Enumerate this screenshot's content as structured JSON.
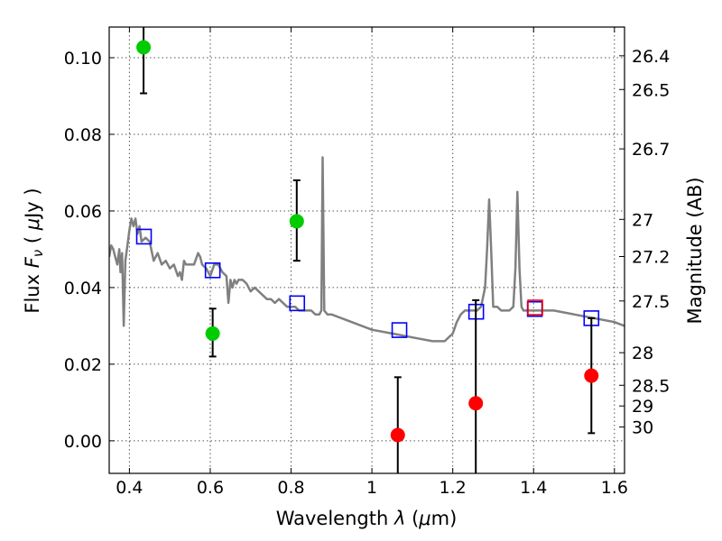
{
  "chart_data": {
    "type": "scatter",
    "title": "",
    "xlabel": "Wavelength  λ (μm)",
    "ylabel": "Flux  F_ν  ( μJy )",
    "ylabel_parts": {
      "pre": "Flux  ",
      "sym": "F",
      "sub": "ν",
      "mid": "  ( ",
      "mu": "μ",
      "post": "Jy )"
    },
    "xlabel_parts": {
      "pre": "Wavelength  ",
      "sym": "λ",
      "mid": " (",
      "mu": "μ",
      "post": "m)"
    },
    "y2label": "Magnitude (AB)",
    "xlim": [
      0.35,
      1.625
    ],
    "ylim": [
      -0.0085,
      0.108
    ],
    "grid": true,
    "x_ticks": [
      0.4,
      0.6,
      0.8,
      1.0,
      1.2,
      1.4,
      1.6
    ],
    "x_tick_labels": [
      "0.4",
      "0.6",
      "0.8",
      "1",
      "1.2",
      "1.4",
      "1.6"
    ],
    "y_ticks": [
      0.0,
      0.02,
      0.04,
      0.06,
      0.08,
      0.1
    ],
    "y_tick_labels": [
      "0.00",
      "0.02",
      "0.04",
      "0.06",
      "0.08",
      "0.10"
    ],
    "y2_ticks": [
      {
        "label": "26.4",
        "flux": 0.1005
      },
      {
        "label": "26.5",
        "flux": 0.0917
      },
      {
        "label": "26.7",
        "flux": 0.0762
      },
      {
        "label": "27",
        "flux": 0.0578
      },
      {
        "label": "27.2",
        "flux": 0.0481
      },
      {
        "label": "27.5",
        "flux": 0.0365
      },
      {
        "label": "28",
        "flux": 0.023
      },
      {
        "label": "28.5",
        "flux": 0.0145
      },
      {
        "label": "29",
        "flux": 0.0091
      },
      {
        "label": "30",
        "flux": 0.0036
      }
    ],
    "series": [
      {
        "color": "#808080",
        "kind": "line",
        "x": [
          0.35,
          0.355,
          0.36,
          0.365,
          0.37,
          0.375,
          0.378,
          0.382,
          0.386,
          0.39,
          0.395,
          0.4,
          0.405,
          0.41,
          0.415,
          0.42,
          0.425,
          0.43,
          0.44,
          0.45,
          0.46,
          0.47,
          0.48,
          0.49,
          0.5,
          0.51,
          0.52,
          0.525,
          0.53,
          0.535,
          0.54,
          0.55,
          0.56,
          0.57,
          0.575,
          0.58,
          0.59,
          0.6,
          0.61,
          0.62,
          0.63,
          0.64,
          0.645,
          0.65,
          0.655,
          0.66,
          0.665,
          0.67,
          0.68,
          0.69,
          0.7,
          0.71,
          0.72,
          0.73,
          0.74,
          0.75,
          0.76,
          0.77,
          0.78,
          0.79,
          0.8,
          0.81,
          0.82,
          0.83,
          0.84,
          0.85,
          0.86,
          0.87,
          0.875,
          0.878,
          0.882,
          0.89,
          0.9,
          0.95,
          1.0,
          1.05,
          1.1,
          1.15,
          1.18,
          1.2,
          1.21,
          1.22,
          1.23,
          1.24,
          1.25,
          1.26,
          1.27,
          1.28,
          1.285,
          1.29,
          1.295,
          1.3,
          1.31,
          1.32,
          1.33,
          1.34,
          1.35,
          1.355,
          1.36,
          1.365,
          1.37,
          1.375,
          1.38,
          1.4,
          1.45,
          1.5,
          1.55,
          1.6,
          1.625
        ],
        "y": [
          0.048,
          0.051,
          0.05,
          0.048,
          0.046,
          0.05,
          0.044,
          0.049,
          0.03,
          0.047,
          0.051,
          0.055,
          0.058,
          0.056,
          0.058,
          0.054,
          0.056,
          0.052,
          0.053,
          0.052,
          0.047,
          0.049,
          0.046,
          0.047,
          0.045,
          0.046,
          0.043,
          0.044,
          0.042,
          0.047,
          0.046,
          0.046,
          0.046,
          0.049,
          0.048,
          0.046,
          0.045,
          0.043,
          0.046,
          0.046,
          0.044,
          0.043,
          0.036,
          0.042,
          0.04,
          0.042,
          0.041,
          0.042,
          0.042,
          0.041,
          0.039,
          0.04,
          0.039,
          0.038,
          0.037,
          0.037,
          0.036,
          0.037,
          0.036,
          0.035,
          0.035,
          0.035,
          0.034,
          0.034,
          0.034,
          0.034,
          0.033,
          0.033,
          0.034,
          0.074,
          0.034,
          0.033,
          0.033,
          0.031,
          0.029,
          0.028,
          0.027,
          0.026,
          0.026,
          0.028,
          0.031,
          0.033,
          0.034,
          0.034,
          0.034,
          0.034,
          0.035,
          0.04,
          0.05,
          0.063,
          0.05,
          0.035,
          0.035,
          0.034,
          0.034,
          0.034,
          0.035,
          0.045,
          0.065,
          0.045,
          0.035,
          0.034,
          0.034,
          0.034,
          0.034,
          0.033,
          0.032,
          0.031,
          0.03
        ]
      },
      {
        "color": "#0000ff",
        "kind": "open-square",
        "x": [
          0.436,
          0.606,
          0.815,
          1.068,
          1.258,
          1.403,
          1.543
        ],
        "y": [
          0.0533,
          0.0445,
          0.0359,
          0.0289,
          0.0337,
          0.0344,
          0.032
        ]
      },
      {
        "color": "#ff0000",
        "kind": "open-square",
        "x": [
          1.404
        ],
        "y": [
          0.0348
        ]
      },
      {
        "color": "#00cc00",
        "kind": "filled-circle",
        "x": [
          0.435,
          0.606,
          0.814
        ],
        "y": [
          0.1027,
          0.028,
          0.0573
        ],
        "ylow": [
          0.0907,
          0.022,
          0.047
        ],
        "yhigh": [
          0.11,
          0.0345,
          0.068
        ]
      },
      {
        "color": "#ff0000",
        "kind": "filled-circle",
        "x": [
          1.064,
          1.257,
          1.543
        ],
        "y": [
          0.0015,
          0.0098,
          0.017
        ],
        "ylow": [
          -0.011,
          -0.011,
          0.002
        ],
        "yhigh": [
          0.0166,
          0.0367,
          0.032
        ]
      }
    ]
  }
}
